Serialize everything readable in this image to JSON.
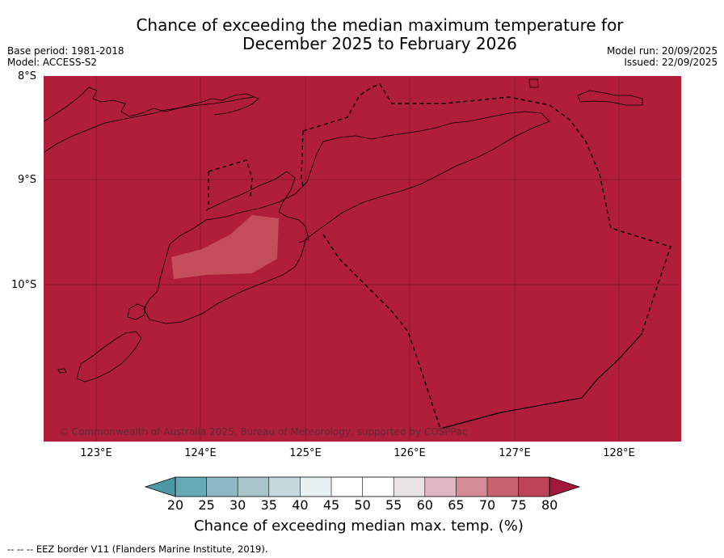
{
  "title": {
    "line1": "Chance of exceeding the median maximum temperature for",
    "line2": "December 2025 to February 2026"
  },
  "meta": {
    "base_period": "Base period: 1981-2018",
    "model": "Model: ACCESS-S2",
    "model_run": "Model run: 20/09/2025",
    "issued": "Issued: 22/09/2025"
  },
  "map": {
    "lat_labels": [
      "8°S",
      "9°S",
      "10°S"
    ],
    "lon_labels": [
      "123°E",
      "124°E",
      "125°E",
      "126°E",
      "127°E",
      "128°E"
    ],
    "copyright": "© Commonwealth of Australia 2025, Bureau of Meteorology, supported by COSPPac",
    "background_color": "#b01e39",
    "lighter_patch_color": "#c44d5c",
    "lighter_patch_category": "75-80"
  },
  "colorbar": {
    "ticks": [
      "20",
      "25",
      "30",
      "35",
      "40",
      "45",
      "50",
      "55",
      "60",
      "65",
      "70",
      "75",
      "80"
    ],
    "colors": [
      "#67a9b6",
      "#8eb8c3",
      "#a9c6cc",
      "#c6d9df",
      "#e8f0f2",
      "#ffffff",
      "#ffffff",
      "#e8e4e5",
      "#e0b7c0",
      "#d48b96",
      "#c8626f",
      "#bd4356"
    ],
    "under_color": "#4d98a6",
    "over_color": "#a3173a",
    "label": "Chance of exceeding median max. temp. (%)"
  },
  "footer": "--  --  -- EEZ border V11 (Flanders Marine Institute, 2019)."
}
